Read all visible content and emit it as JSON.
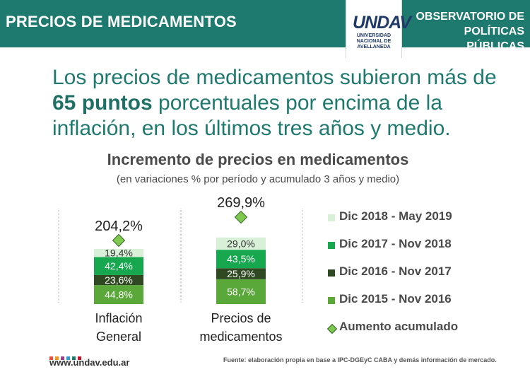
{
  "header": {
    "title": "PRECIOS DE MEDICAMENTOS",
    "logo_mark": "UNDAV",
    "logo_text": "UNIVERSIDAD NACIONAL DE AVELLANEDA",
    "observatory": "OBSERVATORIO DE POLÍTICAS PÚBLICAS"
  },
  "headline": {
    "part1": "Los precios de medicamentos subieron más de ",
    "bold": "65 puntos",
    "part2": " porcentuales por encima de la inflación, en los últimos tres años y medio."
  },
  "footer": {
    "url": "www.undav.edu.ar",
    "source": "Fuente: elaboración propia en base a IPC-DGEyC CABA y demás información de mercado.",
    "dot_colors": [
      "#e94e3b",
      "#f39a1e",
      "#9b3f8f",
      "#2e9bd6",
      "#1e7a6e",
      "#c8102e"
    ]
  },
  "chart_data": {
    "type": "bar",
    "title": "Incremento de precios en medicamentos",
    "subtitle": "(en variaciones % por período y acumulado 3 años y medio)",
    "categories": [
      "Inflación General",
      "Precios de medicamentos"
    ],
    "category_lines": [
      [
        "Inflación",
        "General"
      ],
      [
        "Precios de",
        "medicamentos"
      ]
    ],
    "series": [
      {
        "name": "Dic 2015 - Nov 2016",
        "values": [
          44.8,
          58.7
        ],
        "labels": [
          "44,8%",
          "58,7%"
        ],
        "color": "#5aa83a",
        "text_color": "#ffffff"
      },
      {
        "name": "Dic 2016 - Nov 2017",
        "values": [
          23.6,
          25.9
        ],
        "labels": [
          "23,6%",
          "25,9%"
        ],
        "color": "#2f4a22",
        "text_color": "#ffffff"
      },
      {
        "name": "Dic 2017 - Nov 2018",
        "values": [
          42.4,
          43.5
        ],
        "labels": [
          "42,4%",
          "43,5%"
        ],
        "color": "#17a84f",
        "text_color": "#ffffff"
      },
      {
        "name": "Dic 2018 - May 2019",
        "values": [
          19.4,
          29.0
        ],
        "labels": [
          "19,4%",
          "29,0%"
        ],
        "color": "#d8efd8",
        "text_color": "#333333"
      }
    ],
    "accumulated": {
      "name": "Aumento acumulado",
      "values": [
        204.2,
        269.9
      ],
      "labels": [
        "204,2%",
        "269,9%"
      ],
      "color": "#7ec850"
    },
    "legend_order": [
      "Dic 2018 - May 2019",
      "Dic 2017 - Nov 2018",
      "Dic 2016 - Nov 2017",
      "Dic 2015 - Nov 2016",
      "Aumento acumulado"
    ],
    "legend_position": "right",
    "grid": false
  }
}
